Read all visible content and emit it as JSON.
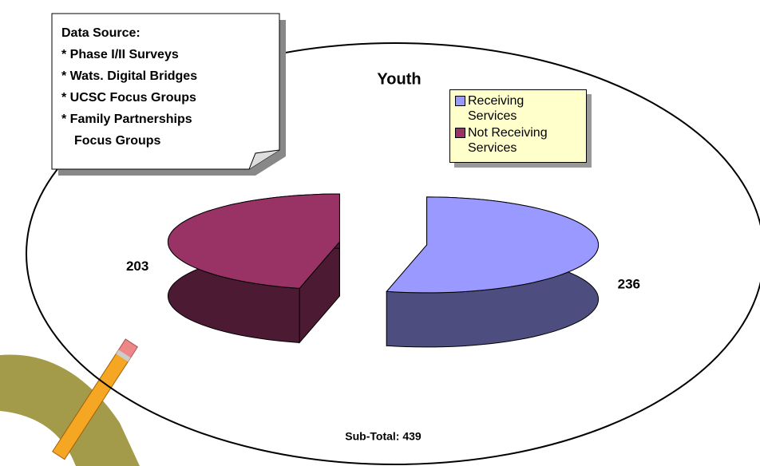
{
  "chart_data": {
    "type": "pie",
    "title": "Youth",
    "categories": [
      "Receiving Services",
      "Not Receiving Services"
    ],
    "values": [
      236,
      203
    ],
    "colors": [
      "#9999ff",
      "#993366"
    ],
    "side_colors": [
      "#4d4d80",
      "#4d1a33"
    ],
    "legend": "top-right",
    "subtotal": "Sub-Total: 439",
    "source_note": [
      "Data Source:",
      "* Phase I/II Surveys",
      "* Wats. Digital Bridges",
      "* UCSC Focus Groups",
      "* Family Partnerships",
      "Focus Groups"
    ]
  }
}
